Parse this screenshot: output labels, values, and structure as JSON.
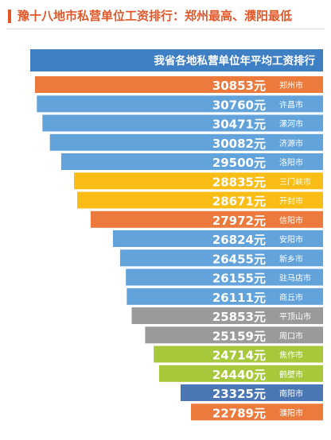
{
  "header": {
    "title": "豫十八地市私营单位工资排行：郑州最高、濮阳最低"
  },
  "colors": {
    "header_accent": "#e0582a",
    "title_bar": "#3f7fc4",
    "orange": "#ec7a3c",
    "blue": "#62a3db",
    "yellow": "#f9bd16",
    "gray": "#9a9a9a",
    "green": "#a7c83b",
    "navy": "#4a77b3"
  },
  "chart_data": {
    "type": "bar",
    "orientation": "horizontal",
    "title": "我省各地私营单位年平均工资排行",
    "unit": "元",
    "categories": [
      "郑州市",
      "许昌市",
      "漯河市",
      "济源市",
      "洛阳市",
      "三门峡市",
      "开封市",
      "信阳市",
      "安阳市",
      "新乡市",
      "驻马店市",
      "商丘市",
      "平顶山市",
      "周口市",
      "焦作市",
      "鹤壁市",
      "南阳市",
      "濮阳市"
    ],
    "values": [
      30853,
      30760,
      30471,
      30082,
      29500,
      28835,
      28671,
      27972,
      26824,
      26455,
      26155,
      26111,
      25853,
      25159,
      24714,
      24440,
      23325,
      22789
    ],
    "bar_colors": [
      "orange",
      "blue",
      "blue",
      "blue",
      "blue",
      "yellow",
      "yellow",
      "orange",
      "blue",
      "blue",
      "blue",
      "blue",
      "gray",
      "gray",
      "green",
      "green",
      "navy",
      "orange"
    ],
    "sort": "descending",
    "grid": false,
    "legend": "none"
  }
}
